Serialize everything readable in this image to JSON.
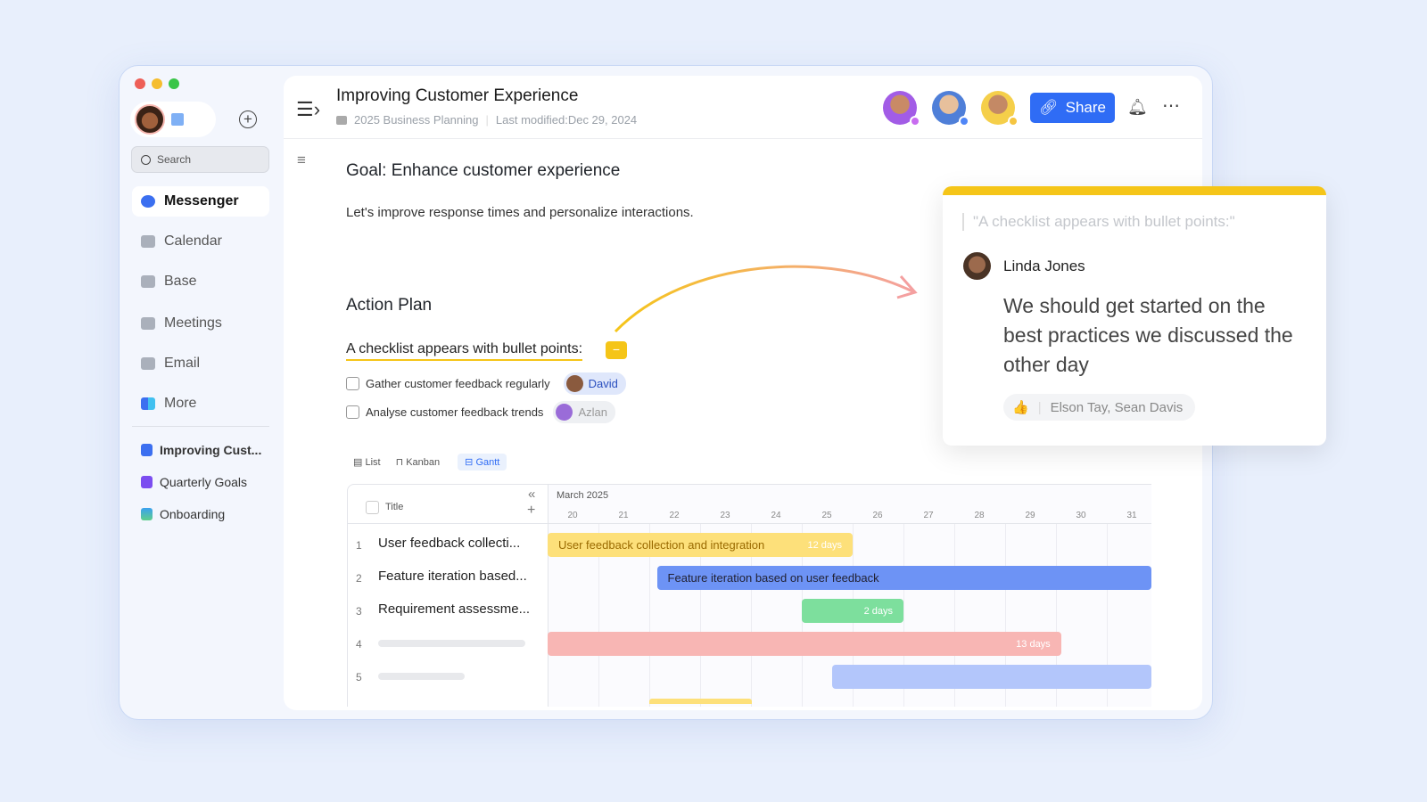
{
  "window": {
    "title": "Improving Customer Experience",
    "folder": "2025 Business Planning",
    "last_modified": "Last modified:Dec 29, 2024"
  },
  "sidebar": {
    "search_placeholder": "Search",
    "items": [
      {
        "label": "Messenger",
        "active": true
      },
      {
        "label": "Calendar"
      },
      {
        "label": "Base"
      },
      {
        "label": "Meetings"
      },
      {
        "label": "Email"
      },
      {
        "label": "More"
      }
    ],
    "docs": [
      {
        "label": "Improving Cust...",
        "color": "#3b6ff0"
      },
      {
        "label": "Quarterly Goals",
        "color": "#7b4df0"
      },
      {
        "label": "Onboarding",
        "color": "#3aa0f0"
      }
    ]
  },
  "header": {
    "share_label": "Share",
    "avatar_status_colors": [
      "#c86cf0",
      "#4f86f7",
      "#f5c542"
    ]
  },
  "doc": {
    "goal": "Goal: Enhance customer experience",
    "intro": "Let's improve response times and personalize interactions.",
    "action_plan": "Action Plan",
    "checklist_title": "A checklist appears with bullet points:",
    "checklist": [
      {
        "label": "Gather customer feedback regularly",
        "assignee": "David",
        "checked": false
      },
      {
        "label": "Analyse customer feedback trends",
        "assignee": "Azlan",
        "checked": false
      }
    ]
  },
  "views": {
    "tabs": [
      "List",
      "Kanban",
      "Gantt"
    ],
    "active": "Gantt"
  },
  "gantt": {
    "month": "March 2025",
    "title_header": "Title",
    "days": [
      "20",
      "21",
      "22",
      "23",
      "24",
      "25",
      "26",
      "27",
      "28",
      "29",
      "30",
      "31"
    ],
    "rows": [
      {
        "num": "1",
        "title": "User feedback collecti...",
        "bar_label": "User feedback collection and integration",
        "duration": "12 days",
        "color": "#fde07a"
      },
      {
        "num": "2",
        "title": "Feature iteration based...",
        "bar_label": "Feature iteration based on user feedback",
        "duration": "",
        "color": "#6d93f5"
      },
      {
        "num": "3",
        "title": "Requirement assessme...",
        "bar_label": "",
        "duration": "2 days",
        "color": "#7ddf9d"
      },
      {
        "num": "4",
        "title": "",
        "bar_label": "",
        "duration": "13 days",
        "color": "#f8b6b4"
      },
      {
        "num": "5",
        "title": "",
        "bar_label": "",
        "duration": "",
        "color": "#b3c6fb"
      }
    ]
  },
  "comment": {
    "quote": "\"A checklist appears with bullet points:\"",
    "author": "Linda Jones",
    "text": "We should get started on the best practices we discussed the other day",
    "reactions": "Elson Tay, Sean Davis",
    "accent": "#f5c518"
  }
}
